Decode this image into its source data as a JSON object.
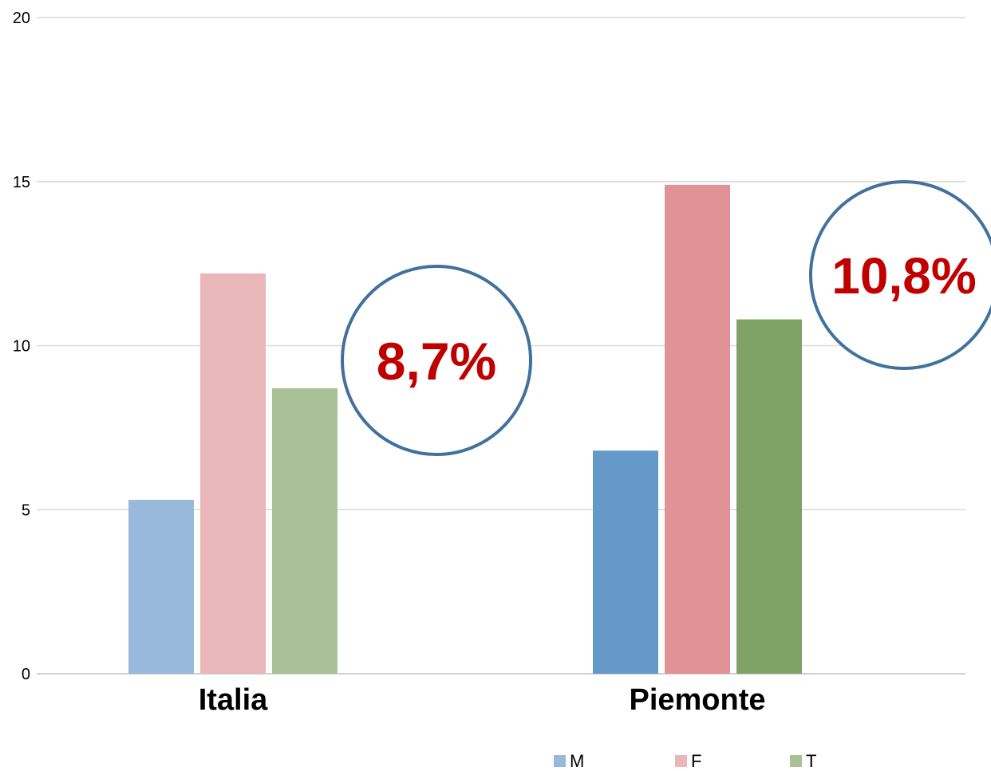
{
  "chart_data": {
    "type": "bar",
    "categories": [
      "Italia",
      "Piemonte"
    ],
    "series": [
      {
        "name": "M",
        "values": [
          5.3,
          6.8
        ],
        "colors": [
          "#98b9dc",
          "#6599c8"
        ]
      },
      {
        "name": "F",
        "values": [
          12.2,
          14.9
        ],
        "colors": [
          "#e9b6b9",
          "#e09296"
        ]
      },
      {
        "name": "T",
        "values": [
          8.7,
          10.8
        ],
        "colors": [
          "#aac198",
          "#7fa267"
        ]
      }
    ],
    "ylim": [
      0,
      20
    ],
    "yticks": [
      0,
      5,
      10,
      15,
      20
    ],
    "grid": true,
    "legend_position": "bottom-right",
    "annotations": [
      {
        "category": "Italia",
        "text": "8,7%"
      },
      {
        "category": "Piemonte",
        "text": "10,8%"
      }
    ],
    "colors": {
      "grid": "#d9d9d9",
      "axis": "#bfbfbf",
      "callout_ring": "#41719c",
      "callout_text": "#c00000"
    }
  }
}
